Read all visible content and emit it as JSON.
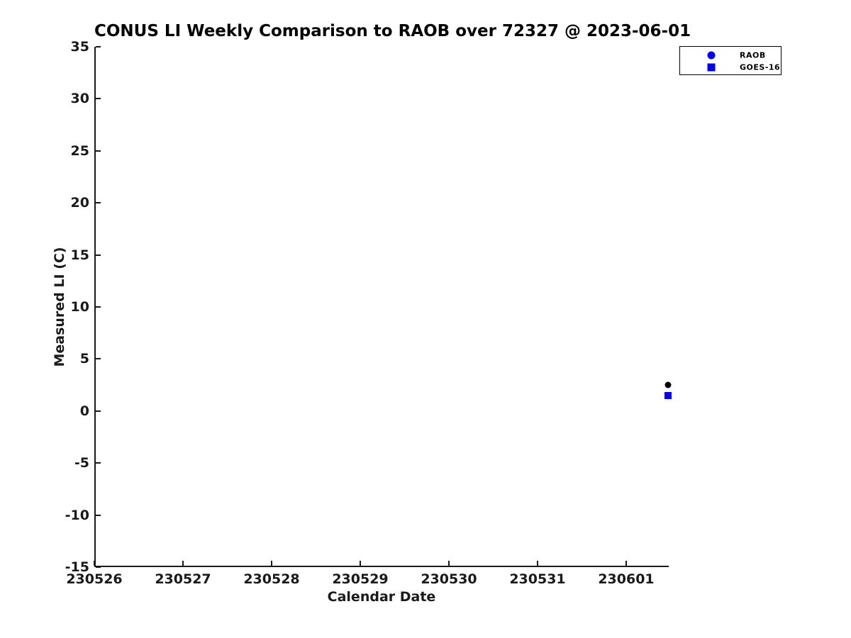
{
  "chart_data": {
    "type": "scatter",
    "title": "CONUS LI Weekly Comparison to RAOB over 72327 @ 2023-06-01",
    "xlabel": "Calendar Date",
    "ylabel": "Measured LI (C)",
    "xlim_days": [
      0,
      6.48
    ],
    "ylim": [
      -15,
      35
    ],
    "x_ticks": [
      {
        "day": 0,
        "label": "230526"
      },
      {
        "day": 1,
        "label": "230527"
      },
      {
        "day": 2,
        "label": "230528"
      },
      {
        "day": 3,
        "label": "230529"
      },
      {
        "day": 4,
        "label": "230530"
      },
      {
        "day": 5,
        "label": "230531"
      },
      {
        "day": 6,
        "label": "230601"
      }
    ],
    "y_ticks": [
      {
        "value": 35,
        "label": "35"
      },
      {
        "value": 30,
        "label": "30"
      },
      {
        "value": 25,
        "label": "25"
      },
      {
        "value": 20,
        "label": "20"
      },
      {
        "value": 15,
        "label": "15"
      },
      {
        "value": 10,
        "label": "10"
      },
      {
        "value": 5,
        "label": "5"
      },
      {
        "value": 0,
        "label": "0"
      },
      {
        "value": -5,
        "label": "-5"
      },
      {
        "value": -10,
        "label": "-10"
      },
      {
        "value": -15,
        "label": "-15"
      }
    ],
    "grid": false,
    "legend_position": "top-right",
    "series": [
      {
        "name": "RAOB",
        "marker": "circle",
        "point_color": "#000000",
        "legend_marker_color": "#0000EE",
        "points": [
          {
            "x_day": 6.47,
            "y": 2.5,
            "x_label": "230601"
          }
        ]
      },
      {
        "name": "GOES-16",
        "marker": "square",
        "point_color": "#0000EE",
        "legend_marker_color": "#0000EE",
        "points": [
          {
            "x_day": 6.47,
            "y": 1.5,
            "x_label": "230601"
          }
        ]
      }
    ],
    "colors": {
      "axis": "#1a1a1a",
      "title_text": "#000000",
      "marker_blue": "#0000EE",
      "marker_black": "#000000",
      "background": "#ffffff"
    }
  }
}
